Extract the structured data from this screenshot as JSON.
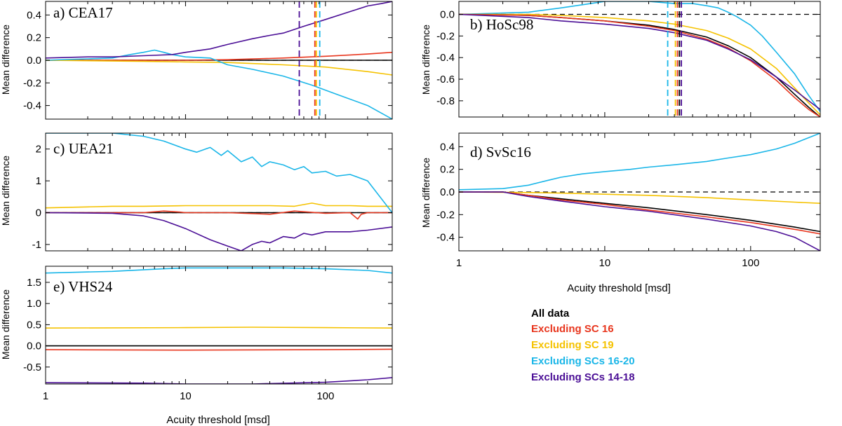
{
  "colors": {
    "all": "#000000",
    "sc16": "#e8361e",
    "sc19": "#f5c200",
    "sc1620": "#1ab6e8",
    "sc1418": "#4b0f96"
  },
  "legend": [
    {
      "key": "all",
      "label": "All data"
    },
    {
      "key": "sc16",
      "label": "Excluding SC 16"
    },
    {
      "key": "sc19",
      "label": "Excluding SC 19"
    },
    {
      "key": "sc1620",
      "label": "Excluding SCs 16-20"
    },
    {
      "key": "sc1418",
      "label": "Excluding SCs 14-18"
    }
  ],
  "chart_data": [
    {
      "id": "a",
      "type": "line",
      "title": "a) CEA17",
      "ylabel": "Mean difference",
      "xlabel": "",
      "xscale": "log",
      "xlim": [
        1,
        300
      ],
      "ylim": [
        -0.52,
        0.52
      ],
      "yticks": [
        -0.4,
        -0.2,
        0.0,
        0.2,
        0.4
      ],
      "ytick_labels": [
        "-0.4",
        "-0.2",
        "0.0",
        "0.2",
        "0.4"
      ],
      "xticks": [
        1,
        10,
        100
      ],
      "xtick_labels": [],
      "zero_line": true,
      "thresholds": [
        {
          "key": "sc1418",
          "x": 65
        },
        {
          "key": "sc16",
          "x": 84
        },
        {
          "key": "sc19",
          "x": 86
        },
        {
          "key": "sc1620",
          "x": 91
        }
      ],
      "series": [
        {
          "key": "all",
          "x": [
            1,
            300
          ],
          "y": [
            0,
            0
          ]
        },
        {
          "key": "sc16",
          "x": [
            1,
            5,
            10,
            20,
            50,
            100,
            200,
            300
          ],
          "y": [
            0.0,
            0.0,
            0.0,
            0.005,
            0.02,
            0.035,
            0.055,
            0.07
          ]
        },
        {
          "key": "sc19",
          "x": [
            1,
            5,
            10,
            20,
            50,
            100,
            200,
            300
          ],
          "y": [
            0.0,
            -0.01,
            -0.015,
            -0.02,
            -0.04,
            -0.06,
            -0.1,
            -0.13
          ]
        },
        {
          "key": "sc1620",
          "x": [
            1,
            3,
            4,
            5,
            6,
            7,
            8,
            10,
            15,
            20,
            30,
            50,
            80,
            120,
            200,
            300
          ],
          "y": [
            0.0,
            0.02,
            0.05,
            0.07,
            0.09,
            0.07,
            0.05,
            0.03,
            0.02,
            -0.04,
            -0.08,
            -0.14,
            -0.22,
            -0.3,
            -0.4,
            -0.52
          ]
        },
        {
          "key": "sc1418",
          "x": [
            1,
            2,
            3,
            5,
            8,
            10,
            15,
            20,
            30,
            40,
            50,
            70,
            100,
            150,
            200,
            250,
            300
          ],
          "y": [
            0.02,
            0.03,
            0.03,
            0.04,
            0.05,
            0.07,
            0.1,
            0.14,
            0.19,
            0.22,
            0.24,
            0.3,
            0.36,
            0.43,
            0.48,
            0.5,
            0.52
          ]
        }
      ]
    },
    {
      "id": "b",
      "type": "line",
      "title": "b) HoSc98",
      "ylabel": "Mean difference",
      "xlabel": "",
      "xscale": "log",
      "xlim": [
        1,
        300
      ],
      "ylim": [
        -0.95,
        0.12
      ],
      "yticks": [
        -0.8,
        -0.6,
        -0.4,
        -0.2,
        0.0
      ],
      "ytick_labels": [
        "-0.8",
        "-0.6",
        "-0.4",
        "-0.2",
        "0.0"
      ],
      "xticks": [
        1,
        10,
        100
      ],
      "xtick_labels": [],
      "zero_line": true,
      "thresholds": [
        {
          "key": "sc1620",
          "x": 27
        },
        {
          "key": "sc19",
          "x": 30.5
        },
        {
          "key": "sc16",
          "x": 31.5
        },
        {
          "key": "all",
          "x": 32.5
        },
        {
          "key": "sc1418",
          "x": 33.5
        }
      ],
      "series": [
        {
          "key": "sc1620",
          "x": [
            1,
            3,
            5,
            8,
            10,
            15,
            20,
            30,
            40,
            50,
            60,
            70,
            80,
            100,
            120,
            150,
            200,
            250,
            300
          ],
          "y": [
            0.0,
            0.02,
            0.06,
            0.1,
            0.12,
            0.12,
            0.12,
            0.1,
            0.1,
            0.08,
            0.06,
            0.02,
            -0.02,
            -0.1,
            -0.2,
            -0.35,
            -0.55,
            -0.75,
            -0.9
          ]
        },
        {
          "key": "sc19",
          "x": [
            1,
            3,
            5,
            10,
            20,
            30,
            50,
            70,
            100,
            150,
            200,
            250,
            300
          ],
          "y": [
            0.0,
            0.0,
            -0.01,
            -0.03,
            -0.06,
            -0.09,
            -0.15,
            -0.22,
            -0.32,
            -0.5,
            -0.68,
            -0.82,
            -0.93
          ]
        },
        {
          "key": "all",
          "x": [
            1,
            3,
            5,
            10,
            20,
            30,
            50,
            70,
            100,
            150,
            200,
            250,
            300
          ],
          "y": [
            0.0,
            -0.01,
            -0.03,
            -0.06,
            -0.1,
            -0.14,
            -0.21,
            -0.29,
            -0.4,
            -0.58,
            -0.74,
            -0.86,
            -0.95
          ]
        },
        {
          "key": "sc16",
          "x": [
            1,
            3,
            5,
            10,
            20,
            30,
            50,
            70,
            100,
            150,
            200,
            250,
            300
          ],
          "y": [
            0.0,
            -0.01,
            -0.03,
            -0.06,
            -0.11,
            -0.15,
            -0.23,
            -0.31,
            -0.43,
            -0.61,
            -0.77,
            -0.88,
            -0.95
          ]
        },
        {
          "key": "sc1418",
          "x": [
            1,
            3,
            5,
            10,
            20,
            30,
            50,
            70,
            100,
            150,
            200,
            250,
            300
          ],
          "y": [
            0.0,
            -0.03,
            -0.06,
            -0.09,
            -0.13,
            -0.17,
            -0.24,
            -0.32,
            -0.42,
            -0.58,
            -0.7,
            -0.8,
            -0.88
          ]
        }
      ]
    },
    {
      "id": "c",
      "type": "line",
      "title": "c) UEA21",
      "ylabel": "Mean difference",
      "xlabel": "",
      "xscale": "log",
      "xlim": [
        1,
        300
      ],
      "ylim": [
        -1.2,
        2.5
      ],
      "yticks": [
        -1,
        0,
        1,
        2
      ],
      "ytick_labels": [
        "-1",
        "0",
        "1",
        "2"
      ],
      "xticks": [
        1,
        10,
        100
      ],
      "xtick_labels": [],
      "zero_line": true,
      "thresholds": [],
      "series": [
        {
          "key": "all",
          "x": [
            1,
            300
          ],
          "y": [
            0,
            0
          ]
        },
        {
          "key": "sc16",
          "x": [
            1,
            5,
            7,
            9,
            10,
            20,
            40,
            60,
            100,
            150,
            170,
            180,
            200,
            300
          ],
          "y": [
            0.0,
            0.0,
            0.05,
            0.02,
            0.0,
            0.0,
            -0.05,
            0.05,
            -0.02,
            0.0,
            -0.2,
            -0.05,
            0.0,
            0.0
          ]
        },
        {
          "key": "sc19",
          "x": [
            1,
            2,
            3,
            5,
            10,
            20,
            40,
            60,
            80,
            100,
            150,
            200,
            300
          ],
          "y": [
            0.15,
            0.18,
            0.2,
            0.2,
            0.22,
            0.22,
            0.22,
            0.2,
            0.3,
            0.22,
            0.22,
            0.2,
            0.2
          ]
        },
        {
          "key": "sc1620",
          "x": [
            1,
            3,
            5,
            7,
            10,
            12,
            15,
            18,
            20,
            25,
            30,
            35,
            40,
            50,
            60,
            70,
            80,
            100,
            120,
            150,
            200,
            300
          ],
          "y": [
            2.5,
            2.5,
            2.4,
            2.25,
            2.0,
            1.9,
            2.05,
            1.8,
            1.95,
            1.6,
            1.75,
            1.45,
            1.6,
            1.5,
            1.35,
            1.45,
            1.25,
            1.3,
            1.15,
            1.2,
            1.0,
            0.0
          ]
        },
        {
          "key": "sc1418",
          "x": [
            1,
            3,
            5,
            7,
            10,
            15,
            20,
            25,
            30,
            35,
            40,
            50,
            60,
            70,
            80,
            100,
            150,
            200,
            300
          ],
          "y": [
            0.0,
            -0.02,
            -0.1,
            -0.25,
            -0.5,
            -0.85,
            -1.05,
            -1.2,
            -1.0,
            -0.9,
            -0.95,
            -0.75,
            -0.8,
            -0.65,
            -0.7,
            -0.6,
            -0.6,
            -0.55,
            -0.45
          ]
        }
      ]
    },
    {
      "id": "d",
      "type": "line",
      "title": "d) SvSc16",
      "ylabel": "Mean difference",
      "xlabel": "Acuity threshold [msd]",
      "xscale": "log",
      "xlim": [
        1,
        300
      ],
      "ylim": [
        -0.52,
        0.52
      ],
      "yticks": [
        -0.4,
        -0.2,
        0.0,
        0.2,
        0.4
      ],
      "ytick_labels": [
        "-0.4",
        "-0.2",
        "0.0",
        "0.2",
        "0.4"
      ],
      "xticks": [
        1,
        10,
        100
      ],
      "xtick_labels": [
        "1",
        "10",
        "100"
      ],
      "zero_line": true,
      "thresholds": [],
      "series": [
        {
          "key": "sc1620",
          "x": [
            1,
            2,
            3,
            4,
            5,
            7,
            10,
            15,
            20,
            30,
            50,
            70,
            100,
            150,
            200,
            250,
            300
          ],
          "y": [
            0.02,
            0.03,
            0.06,
            0.1,
            0.13,
            0.16,
            0.18,
            0.2,
            0.22,
            0.24,
            0.27,
            0.3,
            0.33,
            0.38,
            0.43,
            0.48,
            0.52
          ]
        },
        {
          "key": "sc19",
          "x": [
            1,
            3,
            5,
            10,
            20,
            50,
            100,
            200,
            300
          ],
          "y": [
            0.0,
            -0.005,
            -0.01,
            -0.02,
            -0.03,
            -0.05,
            -0.07,
            -0.09,
            -0.1
          ]
        },
        {
          "key": "all",
          "x": [
            1,
            2,
            3,
            5,
            10,
            20,
            50,
            100,
            200,
            300
          ],
          "y": [
            0.0,
            0.0,
            -0.03,
            -0.06,
            -0.1,
            -0.14,
            -0.2,
            -0.25,
            -0.31,
            -0.35
          ]
        },
        {
          "key": "sc16",
          "x": [
            1,
            2,
            3,
            5,
            10,
            20,
            50,
            100,
            200,
            300
          ],
          "y": [
            0.0,
            0.0,
            -0.03,
            -0.07,
            -0.11,
            -0.16,
            -0.22,
            -0.27,
            -0.33,
            -0.37
          ]
        },
        {
          "key": "sc1418",
          "x": [
            1,
            2,
            3,
            5,
            10,
            20,
            50,
            100,
            150,
            200,
            300
          ],
          "y": [
            0.0,
            0.0,
            -0.04,
            -0.08,
            -0.13,
            -0.17,
            -0.24,
            -0.3,
            -0.35,
            -0.4,
            -0.52
          ]
        }
      ]
    },
    {
      "id": "e",
      "type": "line",
      "title": "e) VHS24",
      "ylabel": "Mean difference",
      "xlabel": "Acuity threshold [msd]",
      "xscale": "log",
      "xlim": [
        1,
        300
      ],
      "ylim": [
        -0.9,
        1.88
      ],
      "yticks": [
        -0.5,
        0.0,
        0.5,
        1.0,
        1.5
      ],
      "ytick_labels": [
        "-0.5",
        "0.0",
        "0.5",
        "1.0",
        "1.5"
      ],
      "xticks": [
        1,
        10,
        100
      ],
      "xtick_labels": [
        "1",
        "10",
        "100"
      ],
      "zero_line": false,
      "thresholds": [],
      "series": [
        {
          "key": "sc1620",
          "x": [
            1,
            3,
            7,
            10,
            20,
            50,
            100,
            200,
            300
          ],
          "y": [
            1.72,
            1.76,
            1.82,
            1.84,
            1.84,
            1.84,
            1.82,
            1.78,
            1.72
          ]
        },
        {
          "key": "sc19",
          "x": [
            1,
            10,
            30,
            100,
            300
          ],
          "y": [
            0.42,
            0.43,
            0.44,
            0.43,
            0.42
          ]
        },
        {
          "key": "all",
          "x": [
            1,
            300
          ],
          "y": [
            0.0,
            0.0
          ]
        },
        {
          "key": "sc16",
          "x": [
            1,
            10,
            100,
            300
          ],
          "y": [
            -0.09,
            -0.1,
            -0.09,
            -0.08
          ]
        },
        {
          "key": "sc1418",
          "x": [
            1,
            5,
            10,
            30,
            100,
            200,
            300
          ],
          "y": [
            -0.87,
            -0.88,
            -0.9,
            -0.9,
            -0.86,
            -0.8,
            -0.75
          ]
        }
      ]
    }
  ]
}
